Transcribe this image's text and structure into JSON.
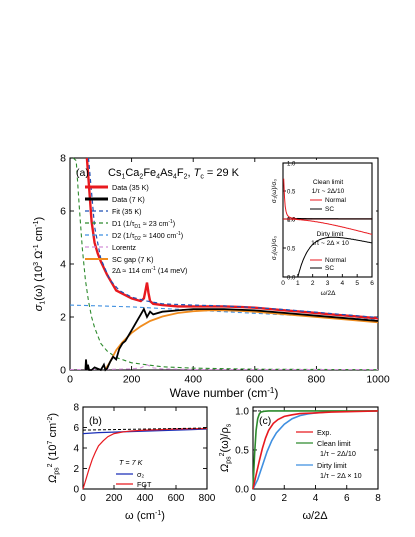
{
  "chart_data": [
    {
      "panel": "(a)",
      "type": "line",
      "title_parts": [
        "Cs",
        "1",
        "Ca",
        "2",
        "Fe",
        "4",
        "As",
        "4",
        "F",
        "2",
        ", ",
        "T",
        "c",
        " = 29 K"
      ],
      "xlabel": "Wave number (cm",
      "xlabel_sup": "-1",
      "xlabel_end": ")",
      "ylabel_parts": [
        "σ",
        "1",
        "(ω) (10",
        "3",
        " Ω",
        "-1",
        " cm",
        "-1",
        ")"
      ],
      "xlim": [
        0,
        1000
      ],
      "ylim": [
        0,
        8
      ],
      "xticks": [
        "0",
        "200",
        "400",
        "600",
        "800",
        "1000"
      ],
      "yticks": [
        "0",
        "2",
        "4",
        "6",
        "8"
      ],
      "colors": {
        "data35": "#e8191f",
        "data7": "#000000",
        "fit": "#1f4fb4",
        "d1": "#2d8a2d",
        "d2": "#3f8fe0",
        "lorentz": "#d28fd6",
        "scgap": "#f08c1e"
      },
      "legend": [
        {
          "name": "Data (35 K)",
          "style": "data35"
        },
        {
          "name": "Data (7 K)",
          "style": "data7"
        },
        {
          "name": "Fit (35 K)",
          "style": "fit"
        },
        {
          "name": "D1 (1/τ",
          "sub": "D1",
          "rest": " ≈ 23 cm",
          "sup": "-1",
          "end": ")",
          "style": "d1"
        },
        {
          "name": "D2 (1/τ",
          "sub": "D2",
          "rest": " ≈ 1400 cm",
          "sup": "-1",
          "end": ")",
          "style": "d2"
        },
        {
          "name": "Lorentz",
          "style": "lorentz"
        },
        {
          "name": "SC gap (7 K)",
          "style": "scgap"
        }
      ],
      "gap_note": "2Δ ≈ 114 cm",
      "gap_note_sup": "-1",
      "gap_note_end": " (14 meV)",
      "series": [
        {
          "name": "Data (35 K)",
          "x": [
            55,
            60,
            70,
            80,
            90,
            100,
            120,
            150,
            200,
            230,
            240,
            245,
            250,
            255,
            260,
            270,
            300,
            350,
            400,
            450,
            500,
            550,
            600,
            650,
            700,
            750,
            800,
            850,
            900,
            950,
            1000
          ],
          "y": [
            8.5,
            7.2,
            5.6,
            4.8,
            4.4,
            4.1,
            3.6,
            3.0,
            2.7,
            2.6,
            2.7,
            3.0,
            3.3,
            2.9,
            2.6,
            2.5,
            2.45,
            2.4,
            2.4,
            2.4,
            2.4,
            2.38,
            2.35,
            2.3,
            2.25,
            2.2,
            2.15,
            2.1,
            2.05,
            2.0,
            1.95
          ]
        },
        {
          "name": "Data (7 K)",
          "x": [
            50,
            52,
            55,
            58,
            62,
            70,
            80,
            100,
            110,
            115,
            120,
            130,
            140,
            150,
            160,
            170,
            180,
            190,
            200,
            210,
            220,
            230,
            240,
            250,
            260,
            270,
            300,
            350,
            400,
            450,
            500,
            600,
            700,
            800,
            900,
            1000
          ],
          "y": [
            0.0,
            0.4,
            0.0,
            0.2,
            0.0,
            0.0,
            0.1,
            0.0,
            0.2,
            0.0,
            0.05,
            0.3,
            0.5,
            0.4,
            0.8,
            1.0,
            1.1,
            1.3,
            1.5,
            1.7,
            1.9,
            2.1,
            2.3,
            2.0,
            2.2,
            2.1,
            2.2,
            2.25,
            2.3,
            2.3,
            2.3,
            2.25,
            2.15,
            2.05,
            1.95,
            1.85
          ]
        },
        {
          "name": "Fit (35 K)",
          "x": [
            60,
            80,
            100,
            130,
            160,
            200,
            250,
            300,
            400,
            500,
            600,
            700,
            800,
            900,
            1000
          ],
          "y": [
            8.0,
            5.4,
            4.2,
            3.4,
            3.0,
            2.75,
            2.6,
            2.5,
            2.45,
            2.42,
            2.36,
            2.28,
            2.18,
            2.08,
            1.98
          ]
        },
        {
          "name": "D1",
          "x": [
            10,
            20,
            30,
            40,
            50,
            60,
            70,
            80,
            100,
            120,
            150,
            200,
            300,
            400,
            600,
            1000
          ],
          "y": [
            8.0,
            7.9,
            6.2,
            4.6,
            3.4,
            2.6,
            2.0,
            1.6,
            1.0,
            0.72,
            0.47,
            0.27,
            0.12,
            0.07,
            0.03,
            0.01
          ]
        },
        {
          "name": "D2",
          "x": [
            0,
            100,
            200,
            300,
            400,
            500,
            600,
            700,
            800,
            900,
            1000
          ],
          "y": [
            2.45,
            2.42,
            2.38,
            2.32,
            2.26,
            2.2,
            2.14,
            2.08,
            2.02,
            1.96,
            1.9
          ]
        },
        {
          "name": "Lorentz",
          "x": [
            0,
            100,
            200,
            230,
            250,
            270,
            300,
            400,
            600,
            800,
            1000
          ],
          "y": [
            0.02,
            0.02,
            0.04,
            0.08,
            0.2,
            0.08,
            0.04,
            0.02,
            0.02,
            0.02,
            0.02
          ]
        },
        {
          "name": "SC gap (7 K)",
          "x": [
            114,
            130,
            150,
            170,
            200,
            230,
            260,
            300,
            350,
            400,
            450,
            500,
            550,
            600,
            700,
            800,
            900,
            1000
          ],
          "y": [
            0.0,
            0.3,
            0.75,
            1.05,
            1.4,
            1.65,
            1.85,
            2.02,
            2.15,
            2.22,
            2.25,
            2.25,
            2.23,
            2.2,
            2.1,
            2.0,
            1.9,
            1.8
          ]
        }
      ]
    },
    {
      "panel": "(a) inset",
      "type": "line",
      "clean_label": [
        "Clean limit",
        "1/τ ~ 2Δ/10"
      ],
      "dirty_label": [
        "Dirty limit",
        "1/τ ~ 2Δ × 10"
      ],
      "ylabel_top": "σ₁(ω)/σ₀",
      "ylabel_bottom": "σ₁(ω)/σ₀",
      "xlabel": "ω/2Δ",
      "xticks": [
        "0",
        "1",
        "2",
        "3",
        "4",
        "5",
        "6"
      ],
      "yticks_top": [
        "0.0",
        "0.5",
        "1.0"
      ],
      "yticks_bottom": [
        "0.0",
        "0.5",
        "1.0"
      ],
      "legend": [
        "Normal",
        "SC"
      ],
      "xlim": [
        0,
        6
      ],
      "ylim": [
        0,
        1
      ]
    },
    {
      "panel": "(b)",
      "type": "line",
      "xlabel": "ω (cm",
      "xlabel_sup": "-1",
      "xlabel_end": ")",
      "ylabel_parts": [
        "Ω",
        "ps",
        "2",
        " (10",
        "7",
        " cm",
        "-2",
        ")"
      ],
      "annotation": "T = 7 K",
      "xlim": [
        0,
        800
      ],
      "ylim": [
        0,
        8
      ],
      "xticks": [
        "0",
        "200",
        "400",
        "600",
        "800"
      ],
      "yticks": [
        "0",
        "2",
        "4",
        "6",
        "8"
      ],
      "legend": [
        "σ₂",
        "FGT"
      ],
      "series": [
        {
          "name": "σ₂",
          "x": [
            0,
            100,
            200,
            300,
            400,
            500,
            600,
            700,
            800
          ],
          "y": [
            5.4,
            5.5,
            5.55,
            5.6,
            5.65,
            5.7,
            5.75,
            5.8,
            5.85
          ]
        },
        {
          "name": "FGT",
          "x": [
            0,
            20,
            40,
            60,
            80,
            100,
            130,
            160,
            200,
            250,
            300,
            400,
            500,
            600,
            700,
            800
          ],
          "y": [
            0.0,
            1.0,
            2.0,
            2.9,
            3.6,
            4.2,
            4.7,
            5.1,
            5.4,
            5.55,
            5.65,
            5.75,
            5.8,
            5.85,
            5.88,
            5.9
          ]
        }
      ]
    },
    {
      "panel": "(c)",
      "type": "line",
      "xlabel": "ω/2Δ",
      "ylabel_parts": [
        "Ω",
        "ps",
        "2",
        "(ω)/ρ",
        "s"
      ],
      "xlim": [
        0,
        8
      ],
      "ylim": [
        0,
        1.05
      ],
      "xticks": [
        "0",
        "2",
        "4",
        "6",
        "8"
      ],
      "yticks": [
        "0.0",
        "0.5",
        "1.0"
      ],
      "legend": [
        "Exp.",
        "Clean limit",
        "1/τ ~ 2Δ/10",
        "Dirty limit",
        "1/τ ~ 2Δ × 10"
      ],
      "series": [
        {
          "name": "Exp.",
          "x": [
            0,
            0.2,
            0.4,
            0.6,
            0.8,
            1.0,
            1.3,
            1.6,
            2.0,
            2.5,
            3,
            4,
            5,
            6,
            7,
            8
          ],
          "y": [
            0,
            0.18,
            0.36,
            0.52,
            0.65,
            0.75,
            0.84,
            0.89,
            0.93,
            0.95,
            0.965,
            0.975,
            0.985,
            0.99,
            0.995,
            1.0
          ]
        },
        {
          "name": "Clean limit",
          "x": [
            0,
            0.1,
            0.2,
            0.3,
            0.4,
            0.5,
            0.7,
            1.0,
            1.5,
            2,
            4,
            8
          ],
          "y": [
            0,
            0.45,
            0.75,
            0.9,
            0.96,
            0.985,
            0.995,
            1.0,
            1.0,
            1.0,
            1.0,
            1.0
          ]
        },
        {
          "name": "Dirty limit",
          "x": [
            0,
            0.3,
            0.6,
            0.9,
            1.2,
            1.5,
            2,
            2.5,
            3,
            3.5,
            4,
            5,
            6,
            7,
            8
          ],
          "y": [
            0,
            0.12,
            0.3,
            0.48,
            0.62,
            0.72,
            0.83,
            0.9,
            0.94,
            0.96,
            0.975,
            0.99,
            0.995,
            0.998,
            1.0
          ]
        }
      ]
    }
  ]
}
